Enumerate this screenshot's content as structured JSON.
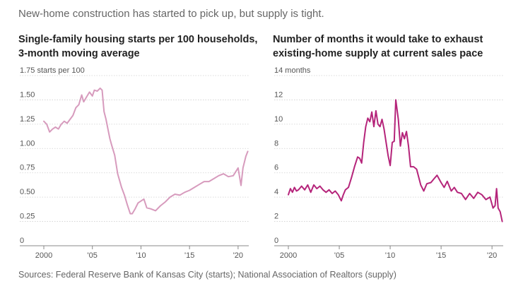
{
  "headline": "New-home construction has started to pick up, but supply is tight.",
  "source": "Sources: Federal Reserve Bank of Kansas City (starts); National Association of Realtors (supply)",
  "chart_data": [
    {
      "type": "line",
      "title_line1": "Single-family housing starts per 100 households,",
      "title_line2": "3-month moving average",
      "ylabel": "starts per 100",
      "y_ticks": [
        0,
        0.25,
        0.5,
        0.75,
        1.0,
        1.25,
        1.5,
        1.75
      ],
      "y_tick_labels": [
        "0",
        "0.25",
        "0.50",
        "0.75",
        "1.00",
        "1.25",
        "1.50",
        "1.75 starts per 100"
      ],
      "x_ticks": [
        2000,
        2005,
        2010,
        2015,
        2020
      ],
      "x_tick_labels": [
        "2000",
        "'05",
        "'10",
        "'15",
        "'20"
      ],
      "xlim": [
        2000,
        2021.1
      ],
      "ylim": [
        0,
        1.75
      ],
      "color": "#d79bbd",
      "series": [
        {
          "name": "Single-family housing starts per 100 households",
          "x": [
            2000.0,
            2000.3,
            2000.6,
            2000.9,
            2001.2,
            2001.5,
            2001.8,
            2002.1,
            2002.4,
            2002.7,
            2003.0,
            2003.3,
            2003.6,
            2003.9,
            2004.1,
            2004.4,
            2004.7,
            2005.0,
            2005.2,
            2005.5,
            2005.8,
            2006.0,
            2006.2,
            2006.4,
            2006.6,
            2006.8,
            2007.0,
            2007.3,
            2007.6,
            2008.0,
            2008.3,
            2008.6,
            2008.9,
            2009.1,
            2009.4,
            2009.7,
            2010.0,
            2010.3,
            2010.6,
            2011.0,
            2011.5,
            2012.0,
            2012.5,
            2013.0,
            2013.5,
            2014.0,
            2014.5,
            2015.0,
            2015.5,
            2016.0,
            2016.5,
            2017.0,
            2017.5,
            2018.0,
            2018.5,
            2019.0,
            2019.5,
            2020.0,
            2020.3,
            2020.5,
            2020.8,
            2021.0
          ],
          "values": [
            1.28,
            1.25,
            1.17,
            1.2,
            1.22,
            1.2,
            1.25,
            1.28,
            1.26,
            1.3,
            1.34,
            1.42,
            1.45,
            1.55,
            1.48,
            1.53,
            1.58,
            1.54,
            1.6,
            1.59,
            1.62,
            1.6,
            1.38,
            1.3,
            1.2,
            1.1,
            1.03,
            0.93,
            0.74,
            0.6,
            0.52,
            0.42,
            0.33,
            0.33,
            0.38,
            0.44,
            0.46,
            0.48,
            0.39,
            0.38,
            0.36,
            0.41,
            0.45,
            0.5,
            0.53,
            0.52,
            0.55,
            0.57,
            0.6,
            0.63,
            0.66,
            0.66,
            0.69,
            0.72,
            0.74,
            0.71,
            0.72,
            0.8,
            0.62,
            0.8,
            0.92,
            0.97
          ]
        }
      ]
    },
    {
      "type": "line",
      "title_line1": "Number of months it would take to exhaust",
      "title_line2": "existing-home supply at current sales pace",
      "ylabel": "months",
      "y_ticks": [
        0,
        2,
        4,
        6,
        8,
        10,
        12,
        14
      ],
      "y_tick_labels": [
        "0",
        "2",
        "4",
        "6",
        "8",
        "10",
        "12",
        "14 months"
      ],
      "x_ticks": [
        2000,
        2005,
        2010,
        2015,
        2020
      ],
      "x_tick_labels": [
        "2000",
        "'05",
        "'10",
        "'15",
        "'20"
      ],
      "xlim": [
        2000,
        2021.1
      ],
      "ylim": [
        0,
        14
      ],
      "color": "#b5247a",
      "series": [
        {
          "name": "Months of existing-home supply",
          "x": [
            2000.0,
            2000.2,
            2000.4,
            2000.6,
            2000.8,
            2001.0,
            2001.3,
            2001.6,
            2001.9,
            2002.2,
            2002.5,
            2002.8,
            2003.1,
            2003.4,
            2003.7,
            2004.0,
            2004.3,
            2004.6,
            2004.9,
            2005.2,
            2005.4,
            2005.6,
            2005.9,
            2006.2,
            2006.5,
            2006.8,
            2007.0,
            2007.2,
            2007.4,
            2007.6,
            2007.8,
            2008.0,
            2008.2,
            2008.4,
            2008.6,
            2008.8,
            2009.0,
            2009.2,
            2009.4,
            2009.6,
            2009.8,
            2010.0,
            2010.2,
            2010.4,
            2010.55,
            2010.8,
            2011.0,
            2011.2,
            2011.4,
            2011.6,
            2011.8,
            2012.0,
            2012.3,
            2012.6,
            2013.0,
            2013.3,
            2013.6,
            2014.0,
            2014.3,
            2014.6,
            2015.0,
            2015.3,
            2015.6,
            2016.0,
            2016.3,
            2016.6,
            2017.0,
            2017.4,
            2017.8,
            2018.2,
            2018.6,
            2019.0,
            2019.4,
            2019.8,
            2020.1,
            2020.3,
            2020.45,
            2020.6,
            2020.8,
            2021.0
          ],
          "values": [
            4.2,
            4.7,
            4.4,
            4.8,
            4.5,
            4.6,
            4.9,
            4.6,
            5.0,
            4.4,
            5.0,
            4.7,
            4.9,
            4.6,
            4.4,
            4.6,
            4.3,
            4.5,
            4.2,
            3.7,
            4.2,
            4.6,
            4.8,
            5.6,
            6.5,
            7.3,
            7.2,
            6.8,
            8.5,
            9.8,
            10.5,
            10.2,
            11.0,
            9.8,
            11.1,
            10.0,
            9.8,
            10.4,
            9.6,
            8.5,
            7.4,
            6.6,
            8.5,
            8.6,
            12.0,
            10.4,
            8.2,
            9.3,
            8.8,
            9.4,
            8.2,
            6.5,
            6.5,
            6.3,
            5.0,
            4.5,
            5.1,
            5.2,
            5.5,
            5.8,
            5.2,
            4.8,
            5.3,
            4.5,
            4.8,
            4.4,
            4.3,
            3.8,
            4.3,
            3.9,
            4.4,
            4.2,
            3.8,
            4.0,
            3.1,
            3.3,
            4.7,
            3.1,
            2.8,
            2.0
          ]
        }
      ]
    }
  ]
}
